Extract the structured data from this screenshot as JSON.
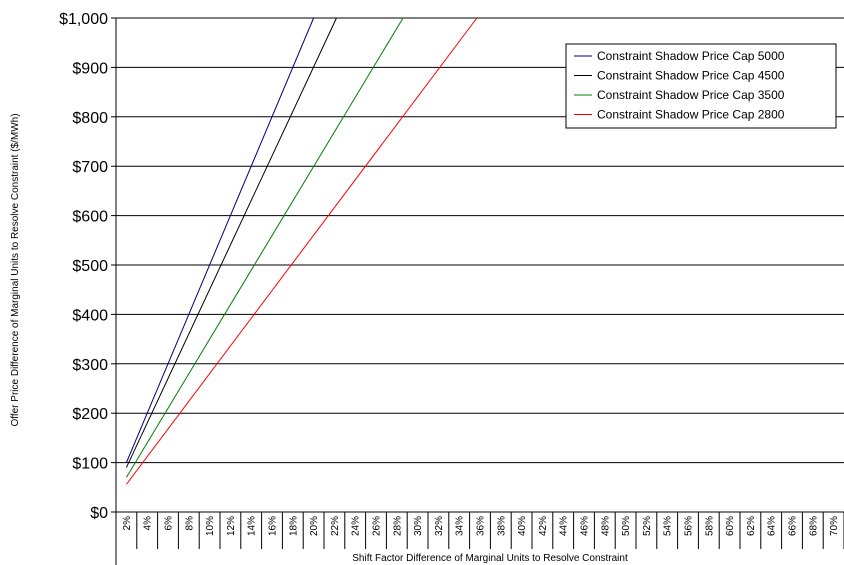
{
  "chart_data": {
    "type": "line",
    "title": "",
    "xlabel": "Shift Factor Difference of Marginal Units to Resolve Constraint",
    "ylabel": "Offer Price Difference of Marginal Units to Resolve Constraint ($/MWh)",
    "ylim": [
      0,
      1000
    ],
    "xlim": [
      1,
      70
    ],
    "grid": true,
    "legend_position": "top-right",
    "y_ticks": [
      "$0",
      "$100",
      "$200",
      "$300",
      "$400",
      "$500",
      "$600",
      "$700",
      "$800",
      "$900",
      "$1,000"
    ],
    "x_ticks": [
      "2%",
      "4%",
      "6%",
      "8%",
      "10%",
      "12%",
      "14%",
      "16%",
      "18%",
      "20%",
      "22%",
      "24%",
      "26%",
      "28%",
      "30%",
      "32%",
      "34%",
      "36%",
      "38%",
      "40%",
      "42%",
      "44%",
      "46%",
      "48%",
      "50%",
      "52%",
      "54%",
      "56%",
      "58%",
      "60%",
      "62%",
      "64%",
      "66%",
      "68%",
      "70%"
    ],
    "series": [
      {
        "name": "Constraint Shadow Price Cap 5000",
        "color": "#000080",
        "x": [
          2,
          20
        ],
        "y": [
          100,
          1000
        ]
      },
      {
        "name": "Constraint Shadow Price Cap 4500",
        "color": "#000000",
        "x": [
          2,
          22.2
        ],
        "y": [
          90,
          1000
        ]
      },
      {
        "name": "Constraint Shadow Price Cap 3500",
        "color": "#008000",
        "x": [
          2,
          28.6
        ],
        "y": [
          70,
          1000
        ]
      },
      {
        "name": "Constraint Shadow Price Cap 2800",
        "color": "#ff0000",
        "x": [
          2,
          35.7
        ],
        "y": [
          56,
          1000
        ]
      }
    ]
  }
}
